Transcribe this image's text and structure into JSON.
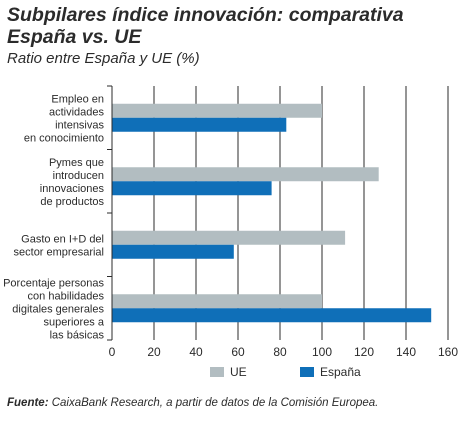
{
  "title": "Subpilares índice innovación: comparativa España vs. UE",
  "subtitle": "Ratio entre España y UE (%)",
  "source_label": "Fuente:",
  "source_text": " CaixaBank Research, a partir de datos de la Comisión Europea.",
  "colors": {
    "ue": "#b2bdc1",
    "espana": "#0f6fb8",
    "grid": "#2b2b2b"
  },
  "chart_data": {
    "type": "bar",
    "orientation": "horizontal",
    "categories": [
      [
        "Empleo en",
        "actividades",
        "intensivas",
        "en conocimiento"
      ],
      [
        "Pymes que",
        "introducen",
        "innovaciones",
        "de productos"
      ],
      [
        "Gasto en I+D del",
        "sector empresarial"
      ],
      [
        "Porcentaje personas",
        "con habilidades",
        "digitales generales",
        "superiores a",
        "las básicas"
      ]
    ],
    "series": [
      {
        "name": "UE",
        "values": [
          100,
          127,
          111,
          100
        ]
      },
      {
        "name": "España",
        "values": [
          83,
          76,
          58,
          152
        ]
      }
    ],
    "xlim": [
      0,
      160
    ],
    "xticks": [
      0,
      20,
      40,
      60,
      80,
      100,
      120,
      140,
      160
    ],
    "grid": true,
    "legend_position": "bottom"
  }
}
